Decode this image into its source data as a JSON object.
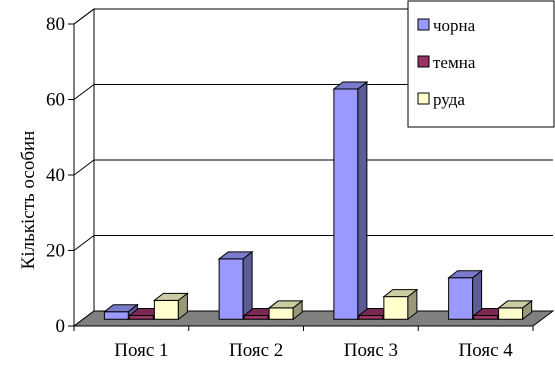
{
  "chart_data": {
    "type": "bar",
    "categories": [
      "Пояс 1",
      "Пояс 2",
      "Пояс 3",
      "Пояс 4"
    ],
    "series": [
      {
        "name": "чорна",
        "values": [
          2,
          16,
          61,
          11
        ],
        "color": "#9999ff"
      },
      {
        "name": "темна",
        "values": [
          1,
          1,
          1,
          1
        ],
        "color": "#993366"
      },
      {
        "name": "руда",
        "values": [
          5,
          3,
          6,
          3
        ],
        "color": "#ffffcc"
      }
    ],
    "ylabel": "Кількість особин",
    "ylim": [
      0,
      80
    ],
    "yticks": [
      0,
      20,
      40,
      60,
      80
    ],
    "grid": true,
    "legend": "top-right",
    "floor_color": "#808080"
  }
}
